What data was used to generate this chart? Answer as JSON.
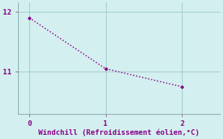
{
  "x": [
    0,
    1,
    2
  ],
  "y": [
    11.9,
    11.05,
    10.75
  ],
  "line_color": "#880088",
  "marker": "D",
  "marker_size": 2.5,
  "line_style": ":",
  "line_width": 1.2,
  "background_color": "#d4efef",
  "grid_color": "#a0cccc",
  "spine_color": "#88aaaa",
  "xlabel": "Windchill (Refroidissement éolien,°C)",
  "xlabel_color": "#880088",
  "xlabel_fontsize": 7.5,
  "tick_color": "#880088",
  "tick_fontsize": 7.5,
  "xlim": [
    -0.15,
    2.5
  ],
  "ylim": [
    10.3,
    12.15
  ],
  "yticks": [
    11,
    12
  ],
  "xticks": [
    0,
    1,
    2
  ]
}
